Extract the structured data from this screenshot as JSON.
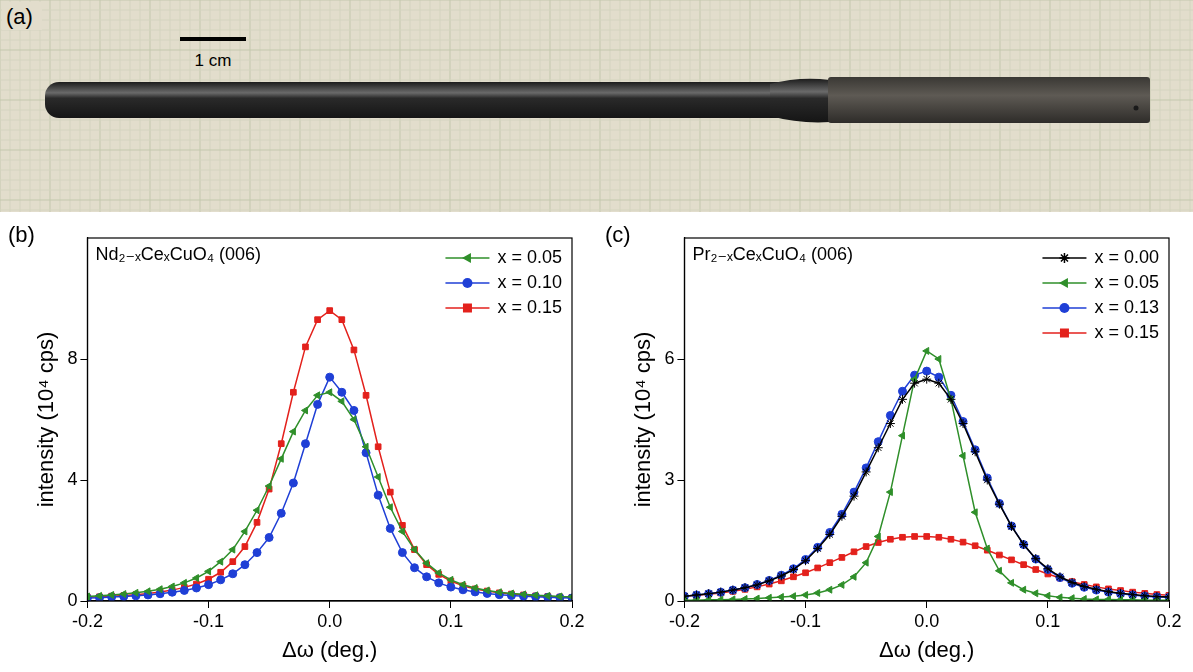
{
  "photo": {
    "panel": "(a)",
    "scale_bar": "1 cm"
  },
  "chart_data": [
    {
      "panel": "(b)",
      "type": "line",
      "title": "Nd₂₋ₓCeₓCuO₄ (006)",
      "x_label": "Δω (deg.)",
      "y_label": "intensity (10⁴ cps)",
      "x": [
        -0.2,
        -0.19,
        -0.18,
        -0.17,
        -0.16,
        -0.15,
        -0.14,
        -0.13,
        -0.12,
        -0.11,
        -0.1,
        -0.09,
        -0.08,
        -0.07,
        -0.06,
        -0.05,
        -0.04,
        -0.03,
        -0.02,
        -0.01,
        0,
        0.01,
        0.02,
        0.03,
        0.04,
        0.05,
        0.06,
        0.07,
        0.08,
        0.09,
        0.1,
        0.11,
        0.12,
        0.13,
        0.14,
        0.15,
        0.16,
        0.17,
        0.18,
        0.19,
        0.2
      ],
      "xlim": [
        -0.2,
        0.2
      ],
      "xticks": [
        -0.2,
        -0.1,
        {
          "value": 0,
          "label": "0.0"
        },
        0.1,
        0.2
      ],
      "ylim": [
        0,
        12
      ],
      "yticks": [
        0,
        4,
        8
      ],
      "grid": false,
      "legend": "upper right",
      "series": [
        {
          "name": "x = 0.05",
          "color": "#2f8f2a",
          "marker": "triangle-left",
          "values": [
            0.15,
            0.17,
            0.2,
            0.23,
            0.27,
            0.32,
            0.39,
            0.48,
            0.6,
            0.76,
            0.98,
            1.3,
            1.7,
            2.3,
            3.0,
            3.8,
            4.7,
            5.6,
            6.3,
            6.8,
            6.9,
            6.6,
            6.0,
            5.1,
            4.1,
            3.1,
            2.3,
            1.7,
            1.25,
            0.93,
            0.7,
            0.54,
            0.43,
            0.35,
            0.29,
            0.25,
            0.22,
            0.19,
            0.17,
            0.15,
            0.14
          ]
        },
        {
          "name": "x = 0.10",
          "color": "#1f3fd6",
          "marker": "circle",
          "values": [
            0.1,
            0.11,
            0.13,
            0.15,
            0.17,
            0.2,
            0.24,
            0.29,
            0.35,
            0.43,
            0.54,
            0.7,
            0.9,
            1.2,
            1.6,
            2.1,
            2.9,
            3.9,
            5.2,
            6.5,
            7.4,
            6.9,
            6.3,
            4.9,
            3.5,
            2.4,
            1.6,
            1.1,
            0.8,
            0.6,
            0.46,
            0.37,
            0.3,
            0.25,
            0.21,
            0.18,
            0.16,
            0.14,
            0.12,
            0.11,
            0.1
          ]
        },
        {
          "name": "x = 0.15",
          "color": "#e3211c",
          "marker": "square",
          "values": [
            0.12,
            0.14,
            0.16,
            0.18,
            0.21,
            0.25,
            0.3,
            0.36,
            0.45,
            0.56,
            0.72,
            0.95,
            1.3,
            1.8,
            2.6,
            3.7,
            5.2,
            6.9,
            8.4,
            9.3,
            9.6,
            9.3,
            8.3,
            6.8,
            5.1,
            3.6,
            2.5,
            1.7,
            1.2,
            0.88,
            0.66,
            0.5,
            0.4,
            0.33,
            0.27,
            0.23,
            0.2,
            0.17,
            0.15,
            0.13,
            0.12
          ]
        }
      ]
    },
    {
      "panel": "(c)",
      "type": "line",
      "title": "Pr₂₋ₓCeₓCuO₄ (006)",
      "x_label": "Δω (deg.)",
      "y_label": "intensity (10⁴ cps)",
      "x": [
        -0.2,
        -0.19,
        -0.18,
        -0.17,
        -0.16,
        -0.15,
        -0.14,
        -0.13,
        -0.12,
        -0.11,
        -0.1,
        -0.09,
        -0.08,
        -0.07,
        -0.06,
        -0.05,
        -0.04,
        -0.03,
        -0.02,
        -0.01,
        0,
        0.01,
        0.02,
        0.03,
        0.04,
        0.05,
        0.06,
        0.07,
        0.08,
        0.09,
        0.1,
        0.11,
        0.12,
        0.13,
        0.14,
        0.15,
        0.16,
        0.17,
        0.18,
        0.19,
        0.2
      ],
      "xlim": [
        -0.2,
        0.2
      ],
      "xticks": [
        -0.2,
        -0.1,
        {
          "value": 0,
          "label": "0.0"
        },
        0.1,
        0.2
      ],
      "ylim": [
        0,
        9
      ],
      "yticks": [
        0,
        3,
        6
      ],
      "grid": false,
      "legend": "upper right",
      "series": [
        {
          "name": "x = 0.00",
          "color": "#000000",
          "marker": "star",
          "values": [
            0.12,
            0.15,
            0.18,
            0.22,
            0.27,
            0.33,
            0.4,
            0.5,
            0.62,
            0.78,
            1.0,
            1.3,
            1.65,
            2.1,
            2.6,
            3.2,
            3.8,
            4.4,
            5.0,
            5.4,
            5.5,
            5.4,
            5.0,
            4.4,
            3.7,
            3.0,
            2.4,
            1.85,
            1.4,
            1.05,
            0.8,
            0.6,
            0.46,
            0.36,
            0.29,
            0.23,
            0.19,
            0.16,
            0.13,
            0.11,
            0.1
          ]
        },
        {
          "name": "x = 0.05",
          "color": "#2f8f2a",
          "marker": "triangle-left",
          "values": [
            0.02,
            0.02,
            0.03,
            0.03,
            0.04,
            0.05,
            0.06,
            0.08,
            0.1,
            0.12,
            0.15,
            0.2,
            0.28,
            0.4,
            0.6,
            0.95,
            1.6,
            2.7,
            4.1,
            5.5,
            6.2,
            6.0,
            5.0,
            3.6,
            2.2,
            1.3,
            0.75,
            0.45,
            0.28,
            0.19,
            0.13,
            0.09,
            0.07,
            0.05,
            0.04,
            0.04,
            0.03,
            0.03,
            0.02,
            0.02,
            0.02
          ]
        },
        {
          "name": "x = 0.13",
          "color": "#1f3fd6",
          "marker": "circle",
          "values": [
            0.12,
            0.15,
            0.18,
            0.22,
            0.27,
            0.33,
            0.41,
            0.51,
            0.64,
            0.8,
            1.03,
            1.33,
            1.7,
            2.15,
            2.7,
            3.3,
            3.95,
            4.6,
            5.2,
            5.6,
            5.7,
            5.55,
            5.1,
            4.45,
            3.75,
            3.05,
            2.42,
            1.86,
            1.4,
            1.04,
            0.78,
            0.58,
            0.44,
            0.34,
            0.27,
            0.22,
            0.18,
            0.15,
            0.12,
            0.1,
            0.09
          ]
        },
        {
          "name": "x = 0.15",
          "color": "#e3211c",
          "marker": "square",
          "values": [
            0.12,
            0.14,
            0.17,
            0.2,
            0.24,
            0.29,
            0.35,
            0.42,
            0.5,
            0.6,
            0.7,
            0.82,
            0.95,
            1.08,
            1.22,
            1.35,
            1.45,
            1.53,
            1.58,
            1.6,
            1.6,
            1.58,
            1.53,
            1.46,
            1.37,
            1.26,
            1.14,
            1.02,
            0.9,
            0.78,
            0.67,
            0.57,
            0.48,
            0.41,
            0.35,
            0.3,
            0.26,
            0.22,
            0.19,
            0.16,
            0.14
          ]
        }
      ]
    }
  ]
}
